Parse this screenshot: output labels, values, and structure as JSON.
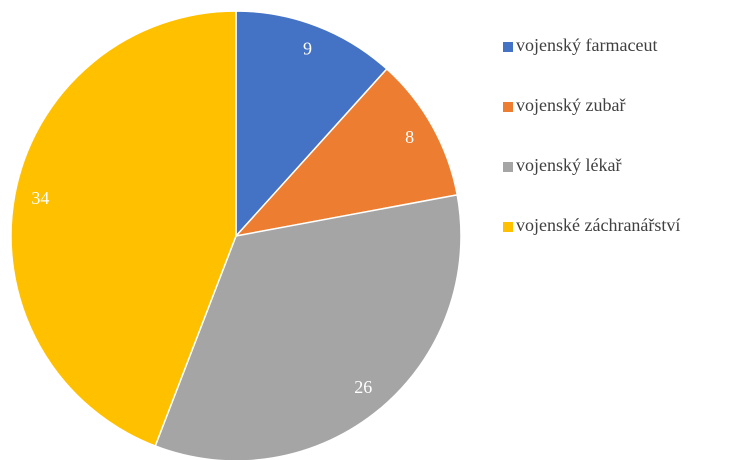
{
  "chart_data": {
    "type": "pie",
    "categories": [
      "vojenský farmaceut",
      "vojenský zubař",
      "vojenský lékař",
      "vojenské záchranářství"
    ],
    "values": [
      9,
      8,
      26,
      34
    ],
    "colors": [
      "#4472c4",
      "#ed7d31",
      "#a5a5a5",
      "#ffc000"
    ],
    "legend": "right"
  }
}
